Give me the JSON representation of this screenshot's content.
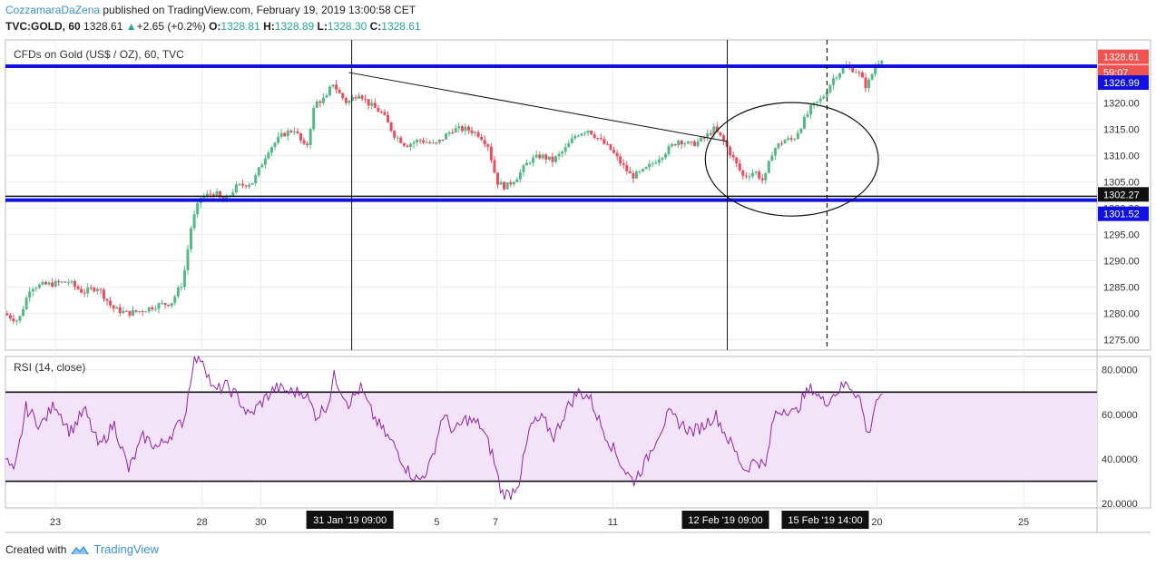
{
  "header": {
    "author": "CozzamaraDaZena",
    "published": " published on TradingView.com, February 19, 2019 13:00:58 CET",
    "symbol": "TVC:GOLD, 60",
    "last": "1328.61",
    "change": "+2.65 (+0.2%)",
    "o_label": "O:",
    "o": "1328.81",
    "h_label": "H:",
    "h": "1328.89",
    "l_label": "L:",
    "l": "1328.30",
    "c_label": "C:",
    "c": "1328.61"
  },
  "footer": {
    "created": "Created with",
    "brand": "TradingView"
  },
  "colors": {
    "up": "#53b987",
    "down": "#eb4d5c",
    "support": "#1010e0",
    "rsi_line": "#8e24aa",
    "rsi_band": "#f3e3f9",
    "badge_red": "#ef5350",
    "badge_blue": "#1010e0",
    "badge_black": "#111111"
  },
  "chart_data": [
    {
      "type": "candlestick",
      "title": "CFDs on Gold (US$ / OZ), 60, TVC",
      "ylim": [
        1273,
        1332
      ],
      "y_ticks": [
        "1320.00",
        "1315.00",
        "1310.00",
        "1305.00",
        "1300.00",
        "1295.00",
        "1290.00",
        "1285.00",
        "1280.00",
        "1275.00"
      ],
      "y_tick_values": [
        1320,
        1315,
        1310,
        1305,
        1300,
        1295,
        1290,
        1285,
        1280,
        1275
      ],
      "x_ticks": [
        "23",
        "28",
        "30",
        "5",
        "7",
        "11",
        "20",
        "25"
      ],
      "x_tick_days": [
        23,
        28,
        30,
        36,
        38,
        42,
        51,
        56
      ],
      "x_range_days": [
        21.3,
        58.5
      ],
      "price_path": [
        [
          21.3,
          1280
        ],
        [
          21.8,
          1278.5
        ],
        [
          22.2,
          1285
        ],
        [
          22.8,
          1285.5
        ],
        [
          23.5,
          1286
        ],
        [
          24,
          1284
        ],
        [
          24.5,
          1285
        ],
        [
          25,
          1281
        ],
        [
          25.5,
          1280
        ],
        [
          26,
          1280.5
        ],
        [
          26.5,
          1281.5
        ],
        [
          27,
          1282
        ],
        [
          27.4,
          1286
        ],
        [
          27.7,
          1297
        ],
        [
          28,
          1302
        ],
        [
          28.5,
          1303
        ],
        [
          28.8,
          1301
        ],
        [
          29.2,
          1304
        ],
        [
          29.8,
          1305
        ],
        [
          30.3,
          1311
        ],
        [
          30.8,
          1314
        ],
        [
          31.2,
          1315
        ],
        [
          31.6,
          1311
        ],
        [
          31.9,
          1320
        ],
        [
          32.3,
          1321
        ],
        [
          32.5,
          1324
        ],
        [
          32.7,
          1322
        ],
        [
          33,
          1320
        ],
        [
          33.4,
          1322
        ],
        [
          33.7,
          1320
        ],
        [
          34.2,
          1318
        ],
        [
          34.6,
          1314
        ],
        [
          35,
          1312
        ],
        [
          35.5,
          1313
        ],
        [
          36,
          1312
        ],
        [
          36.6,
          1315
        ],
        [
          37.1,
          1315
        ],
        [
          37.5,
          1314
        ],
        [
          37.8,
          1312
        ],
        [
          38.1,
          1305
        ],
        [
          38.4,
          1304
        ],
        [
          38.8,
          1306
        ],
        [
          39.2,
          1309
        ],
        [
          39.6,
          1310
        ],
        [
          40,
          1309
        ],
        [
          40.4,
          1311
        ],
        [
          40.8,
          1314
        ],
        [
          41.2,
          1315
        ],
        [
          41.6,
          1313
        ],
        [
          42,
          1311
        ],
        [
          42.4,
          1308
        ],
        [
          42.7,
          1306
        ],
        [
          43.1,
          1307
        ],
        [
          43.5,
          1309
        ],
        [
          43.9,
          1311
        ],
        [
          44.3,
          1313
        ],
        [
          44.7,
          1312
        ],
        [
          45.1,
          1313
        ],
        [
          45.5,
          1315
        ],
        [
          45.8,
          1313
        ],
        [
          46.1,
          1310
        ],
        [
          46.5,
          1306
        ],
        [
          46.9,
          1307
        ],
        [
          47.2,
          1305
        ],
        [
          47.5,
          1311
        ],
        [
          47.9,
          1313
        ],
        [
          48.2,
          1313
        ],
        [
          48.5,
          1316
        ],
        [
          48.8,
          1319
        ],
        [
          49.2,
          1321
        ],
        [
          49.6,
          1325
        ],
        [
          50,
          1327
        ],
        [
          50.4,
          1326
        ],
        [
          50.7,
          1323
        ],
        [
          51,
          1327
        ],
        [
          51.2,
          1328.6
        ]
      ],
      "resistance": 1326.99,
      "support_lower": 1301.52,
      "support_upper": 1302.27,
      "trendline": [
        [
          33,
          1325.8
        ],
        [
          45.9,
          1312.7
        ]
      ],
      "vlines_solid_days": [
        33.1,
        45.9
      ],
      "vline_dashed_day": 49.3,
      "ellipse": {
        "center_day": 48.1,
        "center_price": 1309.3,
        "rx_days": 2.95,
        "ry_price": 10.8
      },
      "price_badges": {
        "last": "1328.61",
        "countdown": "59:07",
        "resistance": "1326.99",
        "support_upper": "1302.27",
        "support_lower": "1301.52"
      },
      "crosshair_labels": [
        "31 Jan '19   09:00",
        "12 Feb '19   09:00",
        "15 Feb '19   14:00"
      ],
      "crosshair_label_days": [
        33.1,
        45.9,
        49.3
      ]
    },
    {
      "type": "line",
      "title": "RSI (14, close)",
      "ylim": [
        18,
        86
      ],
      "y_ticks": [
        "80.0000",
        "60.0000",
        "40.0000",
        "20.0000"
      ],
      "y_tick_values": [
        80,
        60,
        40,
        20
      ],
      "band": [
        30,
        70
      ],
      "rsi_path": [
        [
          21.3,
          40
        ],
        [
          21.6,
          33
        ],
        [
          22,
          63
        ],
        [
          22.5,
          55
        ],
        [
          23,
          65
        ],
        [
          23.5,
          52
        ],
        [
          24,
          62
        ],
        [
          24.5,
          45
        ],
        [
          25,
          56
        ],
        [
          25.5,
          35
        ],
        [
          26,
          50
        ],
        [
          26.5,
          45
        ],
        [
          27,
          52
        ],
        [
          27.4,
          58
        ],
        [
          27.7,
          84
        ],
        [
          28,
          86
        ],
        [
          28.4,
          70
        ],
        [
          28.8,
          73
        ],
        [
          29.2,
          68
        ],
        [
          29.6,
          59
        ],
        [
          30,
          65
        ],
        [
          30.5,
          72
        ],
        [
          31,
          70
        ],
        [
          31.5,
          70
        ],
        [
          31.9,
          59
        ],
        [
          32.3,
          65
        ],
        [
          32.5,
          77
        ],
        [
          33,
          65
        ],
        [
          33.4,
          72
        ],
        [
          33.8,
          60
        ],
        [
          34.2,
          52
        ],
        [
          34.6,
          45
        ],
        [
          35,
          35
        ],
        [
          35.4,
          30
        ],
        [
          35.8,
          38
        ],
        [
          36.2,
          60
        ],
        [
          36.6,
          52
        ],
        [
          37,
          58
        ],
        [
          37.5,
          55
        ],
        [
          37.9,
          42
        ],
        [
          38.2,
          25
        ],
        [
          38.5,
          24
        ],
        [
          38.8,
          30
        ],
        [
          39.2,
          55
        ],
        [
          39.6,
          58
        ],
        [
          40,
          50
        ],
        [
          40.4,
          62
        ],
        [
          40.8,
          70
        ],
        [
          41.2,
          68
        ],
        [
          41.6,
          55
        ],
        [
          42,
          45
        ],
        [
          42.4,
          35
        ],
        [
          42.7,
          30
        ],
        [
          43.1,
          38
        ],
        [
          43.5,
          50
        ],
        [
          43.9,
          60
        ],
        [
          44.3,
          56
        ],
        [
          44.7,
          52
        ],
        [
          45.1,
          55
        ],
        [
          45.5,
          60
        ],
        [
          45.8,
          52
        ],
        [
          46.1,
          45
        ],
        [
          46.5,
          35
        ],
        [
          46.9,
          40
        ],
        [
          47.2,
          36
        ],
        [
          47.5,
          60
        ],
        [
          47.9,
          63
        ],
        [
          48.2,
          60
        ],
        [
          48.5,
          68
        ],
        [
          48.8,
          72
        ],
        [
          49.2,
          65
        ],
        [
          49.6,
          70
        ],
        [
          50,
          74
        ],
        [
          50.4,
          68
        ],
        [
          50.7,
          50
        ],
        [
          51,
          68
        ],
        [
          51.2,
          66
        ]
      ]
    }
  ]
}
